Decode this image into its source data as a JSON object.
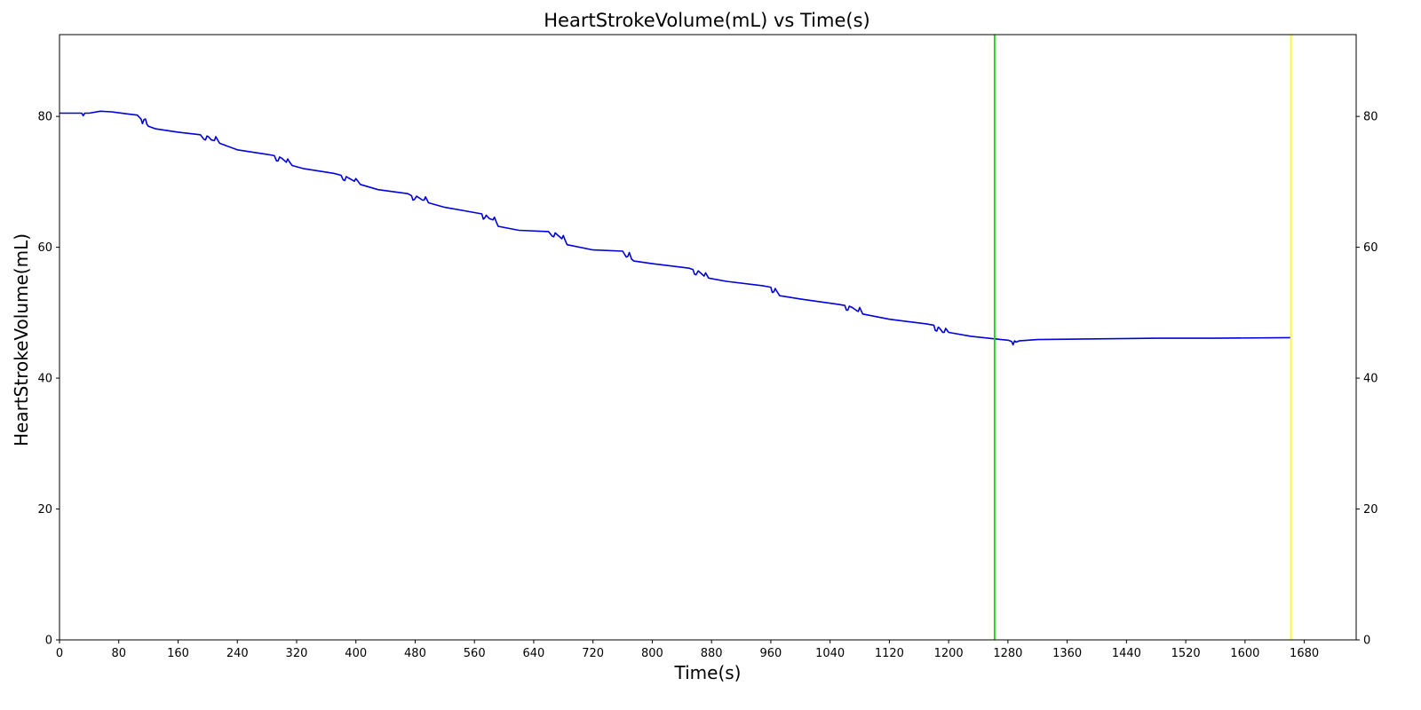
{
  "chart_data": {
    "type": "line",
    "title": "HeartStrokeVolume(mL) vs Time(s)",
    "xlabel": "Time(s)",
    "ylabel": "HeartStrokeVolume(mL)",
    "xlim": [
      0,
      1750
    ],
    "ylim": [
      0,
      92.5
    ],
    "xticks": [
      0,
      80,
      160,
      240,
      320,
      400,
      480,
      560,
      640,
      720,
      800,
      880,
      960,
      1040,
      1120,
      1200,
      1280,
      1360,
      1440,
      1520,
      1600,
      1680
    ],
    "yticks": [
      0,
      20,
      40,
      60,
      80
    ],
    "grid": false,
    "right_axis_ticks": true,
    "vlines": [
      {
        "x": 1262,
        "color": "#00e000"
      },
      {
        "x": 1662,
        "color": "#ffff00"
      }
    ],
    "series": [
      {
        "color": "#0000dd",
        "x": [
          0,
          30,
          32,
          34,
          40,
          55,
          70,
          90,
          105,
          110,
          112,
          114,
          116,
          118,
          120,
          130,
          160,
          190,
          195,
          197,
          199,
          201,
          205,
          209,
          211,
          213,
          216,
          240,
          280,
          290,
          293,
          295,
          297,
          300,
          306,
          308,
          310,
          314,
          330,
          370,
          380,
          383,
          385,
          387,
          390,
          398,
          400,
          402,
          406,
          430,
          470,
          475,
          477,
          479,
          482,
          490,
          492,
          494,
          498,
          520,
          560,
          570,
          572,
          574,
          576,
          580,
          585,
          587,
          589,
          592,
          620,
          660,
          665,
          667,
          669,
          672,
          678,
          680,
          682,
          685,
          720,
          760,
          765,
          767,
          769,
          772,
          775,
          800,
          850,
          855,
          857,
          859,
          862,
          868,
          870,
          872,
          876,
          900,
          950,
          960,
          962,
          964,
          966,
          968,
          972,
          1000,
          1050,
          1060,
          1062,
          1064,
          1066,
          1070,
          1076,
          1078,
          1080,
          1084,
          1120,
          1170,
          1180,
          1182,
          1184,
          1186,
          1188,
          1192,
          1194,
          1196,
          1200,
          1230,
          1262,
          1280,
          1285,
          1287,
          1289,
          1291,
          1295,
          1320,
          1400,
          1480,
          1560,
          1662
        ],
        "y": [
          80.5,
          80.5,
          80.1,
          80.5,
          80.5,
          80.8,
          80.7,
          80.4,
          80.2,
          79.6,
          78.9,
          79.5,
          79.6,
          78.8,
          78.5,
          78.1,
          77.6,
          77.2,
          76.5,
          76.4,
          77.0,
          76.9,
          76.4,
          76.3,
          76.9,
          76.5,
          75.9,
          74.9,
          74.2,
          74.0,
          73.2,
          73.2,
          73.8,
          73.6,
          73.0,
          73.5,
          73.1,
          72.5,
          72.0,
          71.3,
          71.0,
          70.3,
          70.2,
          70.8,
          70.6,
          70.1,
          70.5,
          70.2,
          69.6,
          68.8,
          68.2,
          67.9,
          67.2,
          67.3,
          67.8,
          67.2,
          67.2,
          67.7,
          66.8,
          66.1,
          65.3,
          65.1,
          64.3,
          64.5,
          64.9,
          64.4,
          64.2,
          64.6,
          64.0,
          63.2,
          62.6,
          62.4,
          61.7,
          61.6,
          62.2,
          61.9,
          61.3,
          61.8,
          61.2,
          60.4,
          59.6,
          59.4,
          58.5,
          58.6,
          59.2,
          58.2,
          57.9,
          57.5,
          56.8,
          56.6,
          55.9,
          55.8,
          56.4,
          55.8,
          55.6,
          56.1,
          55.3,
          54.8,
          54.1,
          53.9,
          53.1,
          53.2,
          53.7,
          53.3,
          52.6,
          52.1,
          51.3,
          51.1,
          50.4,
          50.4,
          51.0,
          50.8,
          50.3,
          50.2,
          50.8,
          49.8,
          49.0,
          48.3,
          48.1,
          47.3,
          47.2,
          47.8,
          47.6,
          47.0,
          47.0,
          47.6,
          47.0,
          46.4,
          46.0,
          45.8,
          45.6,
          45.1,
          45.7,
          45.5,
          45.7,
          45.9,
          46.0,
          46.1,
          46.1,
          46.2
        ]
      }
    ]
  }
}
